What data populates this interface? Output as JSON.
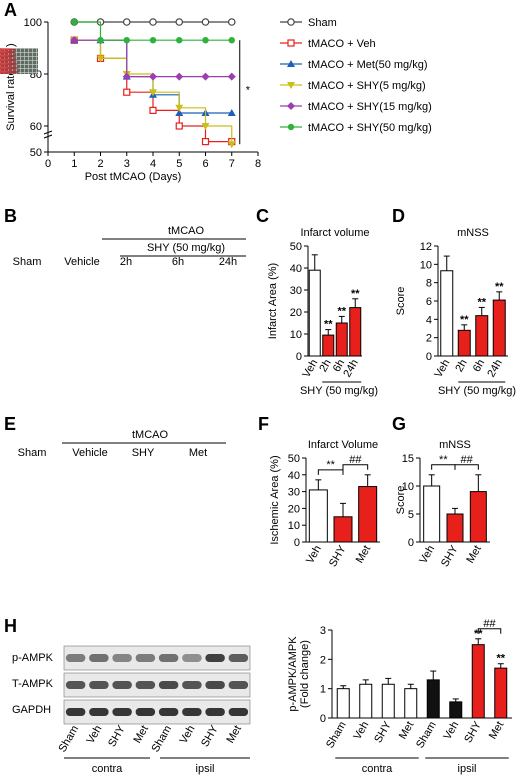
{
  "panels": {
    "A": {
      "label": "A"
    },
    "B": {
      "label": "B",
      "header": "tMCAO",
      "subheader": "SHY (50 mg/kg)",
      "columns": [
        "Sham",
        "Vehicle",
        "2h",
        "6h",
        "24h"
      ]
    },
    "C": {
      "label": "C"
    },
    "D": {
      "label": "D"
    },
    "E": {
      "label": "E",
      "header": "tMCAO",
      "columns": [
        "Sham",
        "Vehicle",
        "SHY",
        "Met"
      ]
    },
    "F": {
      "label": "F"
    },
    "G": {
      "label": "G"
    },
    "H": {
      "label": "H",
      "blot_rows": [
        "p-AMPK",
        "T-AMPK",
        "GAPDH"
      ],
      "lanes": [
        "Sham",
        "Veh",
        "SHY",
        "Met",
        "Sham",
        "Veh",
        "SHY",
        "Met"
      ],
      "groups": [
        "contra",
        "ipsil"
      ]
    }
  },
  "colors": {
    "red": "#e8201c",
    "white": "#ffffff",
    "black": "#111111",
    "gray": "#888888",
    "blue": "#1f5fb8",
    "yellow": "#c8bf18",
    "purple": "#9b3fb0",
    "green": "#2db33a"
  },
  "chart_data": [
    {
      "panel": "A",
      "type": "line",
      "xlabel": "Post tMCAO (Days)",
      "ylabel": "Survival rate ( % )",
      "xlim": [
        0,
        8
      ],
      "ylim": [
        50,
        100
      ],
      "xticks": [
        "0",
        "1",
        "2",
        "3",
        "4",
        "5",
        "6",
        "7",
        "8"
      ],
      "yticks": [
        "50",
        "60",
        "80",
        "100"
      ],
      "significance": "*",
      "series": [
        {
          "name": "Sham",
          "color": "#444444",
          "marker": "circle-open",
          "x": [
            1,
            2,
            3,
            4,
            5,
            6,
            7
          ],
          "y": [
            100,
            100,
            100,
            100,
            100,
            100,
            100
          ]
        },
        {
          "name": "tMACO + Veh",
          "color": "#e8201c",
          "marker": "square-open",
          "x": [
            1,
            2,
            3,
            4,
            5,
            6,
            7
          ],
          "y": [
            93,
            86,
            73,
            66,
            60,
            54,
            54
          ]
        },
        {
          "name": "tMACO + Met(50 mg/kg)",
          "color": "#1f5fb8",
          "marker": "triangle",
          "x": [
            1,
            2,
            3,
            4,
            5,
            6,
            7
          ],
          "y": [
            93,
            93,
            79,
            72,
            65,
            65,
            65
          ]
        },
        {
          "name": "tMACO + SHY(5 mg/kg)",
          "color": "#c8bf18",
          "marker": "triangle-down",
          "x": [
            1,
            2,
            3,
            4,
            5,
            6,
            7
          ],
          "y": [
            93,
            86,
            80,
            73,
            67,
            60,
            53
          ]
        },
        {
          "name": "tMACO + SHY(15 mg/kg)",
          "color": "#9b3fb0",
          "marker": "diamond",
          "x": [
            1,
            2,
            3,
            4,
            5,
            6,
            7
          ],
          "y": [
            93,
            93,
            79,
            79,
            79,
            79,
            79
          ]
        },
        {
          "name": "tMACO + SHY(50 mg/kg)",
          "color": "#2db33a",
          "marker": "circle",
          "x": [
            1,
            2,
            3,
            4,
            5,
            6,
            7
          ],
          "y": [
            100,
            93,
            93,
            93,
            93,
            93,
            93
          ]
        }
      ]
    },
    {
      "panel": "C",
      "type": "bar",
      "title": "Infarct volume",
      "ylabel": "Infarct Area (%)",
      "ylim": [
        0,
        50
      ],
      "yticks": [
        "0",
        "10",
        "20",
        "30",
        "40",
        "50"
      ],
      "categories": [
        "Veh",
        "2h",
        "6h",
        "24h"
      ],
      "values": [
        39,
        9.5,
        15,
        22
      ],
      "errors": [
        7,
        2.5,
        3,
        4
      ],
      "fills": [
        "#ffffff",
        "#e8201c",
        "#e8201c",
        "#e8201c"
      ],
      "stars": [
        "",
        "**",
        "**",
        "**"
      ],
      "xgroup": "SHY (50 mg/kg)"
    },
    {
      "panel": "D",
      "type": "bar",
      "title": "mNSS",
      "ylabel": "Score",
      "ylim": [
        0,
        12
      ],
      "yticks": [
        "0",
        "2",
        "4",
        "6",
        "8",
        "10",
        "12"
      ],
      "categories": [
        "Veh",
        "2h",
        "6h",
        "24h"
      ],
      "values": [
        9.3,
        2.8,
        4.4,
        6.1
      ],
      "errors": [
        1.6,
        0.6,
        0.9,
        0.9
      ],
      "fills": [
        "#ffffff",
        "#e8201c",
        "#e8201c",
        "#e8201c"
      ],
      "stars": [
        "",
        "**",
        "**",
        "**"
      ],
      "xgroup": "SHY (50 mg/kg)"
    },
    {
      "panel": "F",
      "type": "bar",
      "title": "Infarct Volume",
      "ylabel": "Ischemic Area (%)",
      "ylim": [
        0,
        50
      ],
      "yticks": [
        "0",
        "10",
        "20",
        "30",
        "40",
        "50"
      ],
      "categories": [
        "Veh",
        "SHY",
        "Met"
      ],
      "values": [
        31,
        15,
        33
      ],
      "errors": [
        6,
        8,
        7
      ],
      "fills": [
        "#ffffff",
        "#e8201c",
        "#e8201c"
      ],
      "brackets": [
        {
          "from": 0,
          "to": 1,
          "label": "**"
        },
        {
          "from": 1,
          "to": 2,
          "label": "##"
        }
      ]
    },
    {
      "panel": "G",
      "type": "bar",
      "title": "mNSS",
      "ylabel": "Score",
      "ylim": [
        0,
        15
      ],
      "yticks": [
        "0",
        "5",
        "10",
        "15"
      ],
      "categories": [
        "Veh",
        "SHY",
        "Met"
      ],
      "values": [
        10,
        5,
        9
      ],
      "errors": [
        2,
        1,
        3
      ],
      "fills": [
        "#ffffff",
        "#e8201c",
        "#e8201c"
      ],
      "brackets": [
        {
          "from": 0,
          "to": 1,
          "label": "**"
        },
        {
          "from": 1,
          "to": 2,
          "label": "##"
        }
      ]
    },
    {
      "panel": "H",
      "type": "bar",
      "ylabel": "p-AMPK/AMPK",
      "ylabel2": "(Fold change)",
      "ylim": [
        0,
        3
      ],
      "yticks": [
        "0",
        "1",
        "2",
        "3"
      ],
      "categories": [
        "Sham",
        "Veh",
        "SHY",
        "Met",
        "Sham",
        "Veh",
        "SHY",
        "Met"
      ],
      "values": [
        1.0,
        1.15,
        1.15,
        1.0,
        1.3,
        0.55,
        2.5,
        1.7
      ],
      "errors": [
        0.1,
        0.15,
        0.2,
        0.15,
        0.3,
        0.1,
        0.2,
        0.15
      ],
      "fills": [
        "#ffffff",
        "#ffffff",
        "#ffffff",
        "#ffffff",
        "#111111",
        "#111111",
        "#e8201c",
        "#e8201c"
      ],
      "stars": [
        "",
        "",
        "",
        "",
        "",
        "",
        "**",
        "**"
      ],
      "brackets": [
        {
          "from": 6,
          "to": 7,
          "label": "##"
        }
      ],
      "groups": [
        "contra",
        "ipsil"
      ]
    }
  ]
}
